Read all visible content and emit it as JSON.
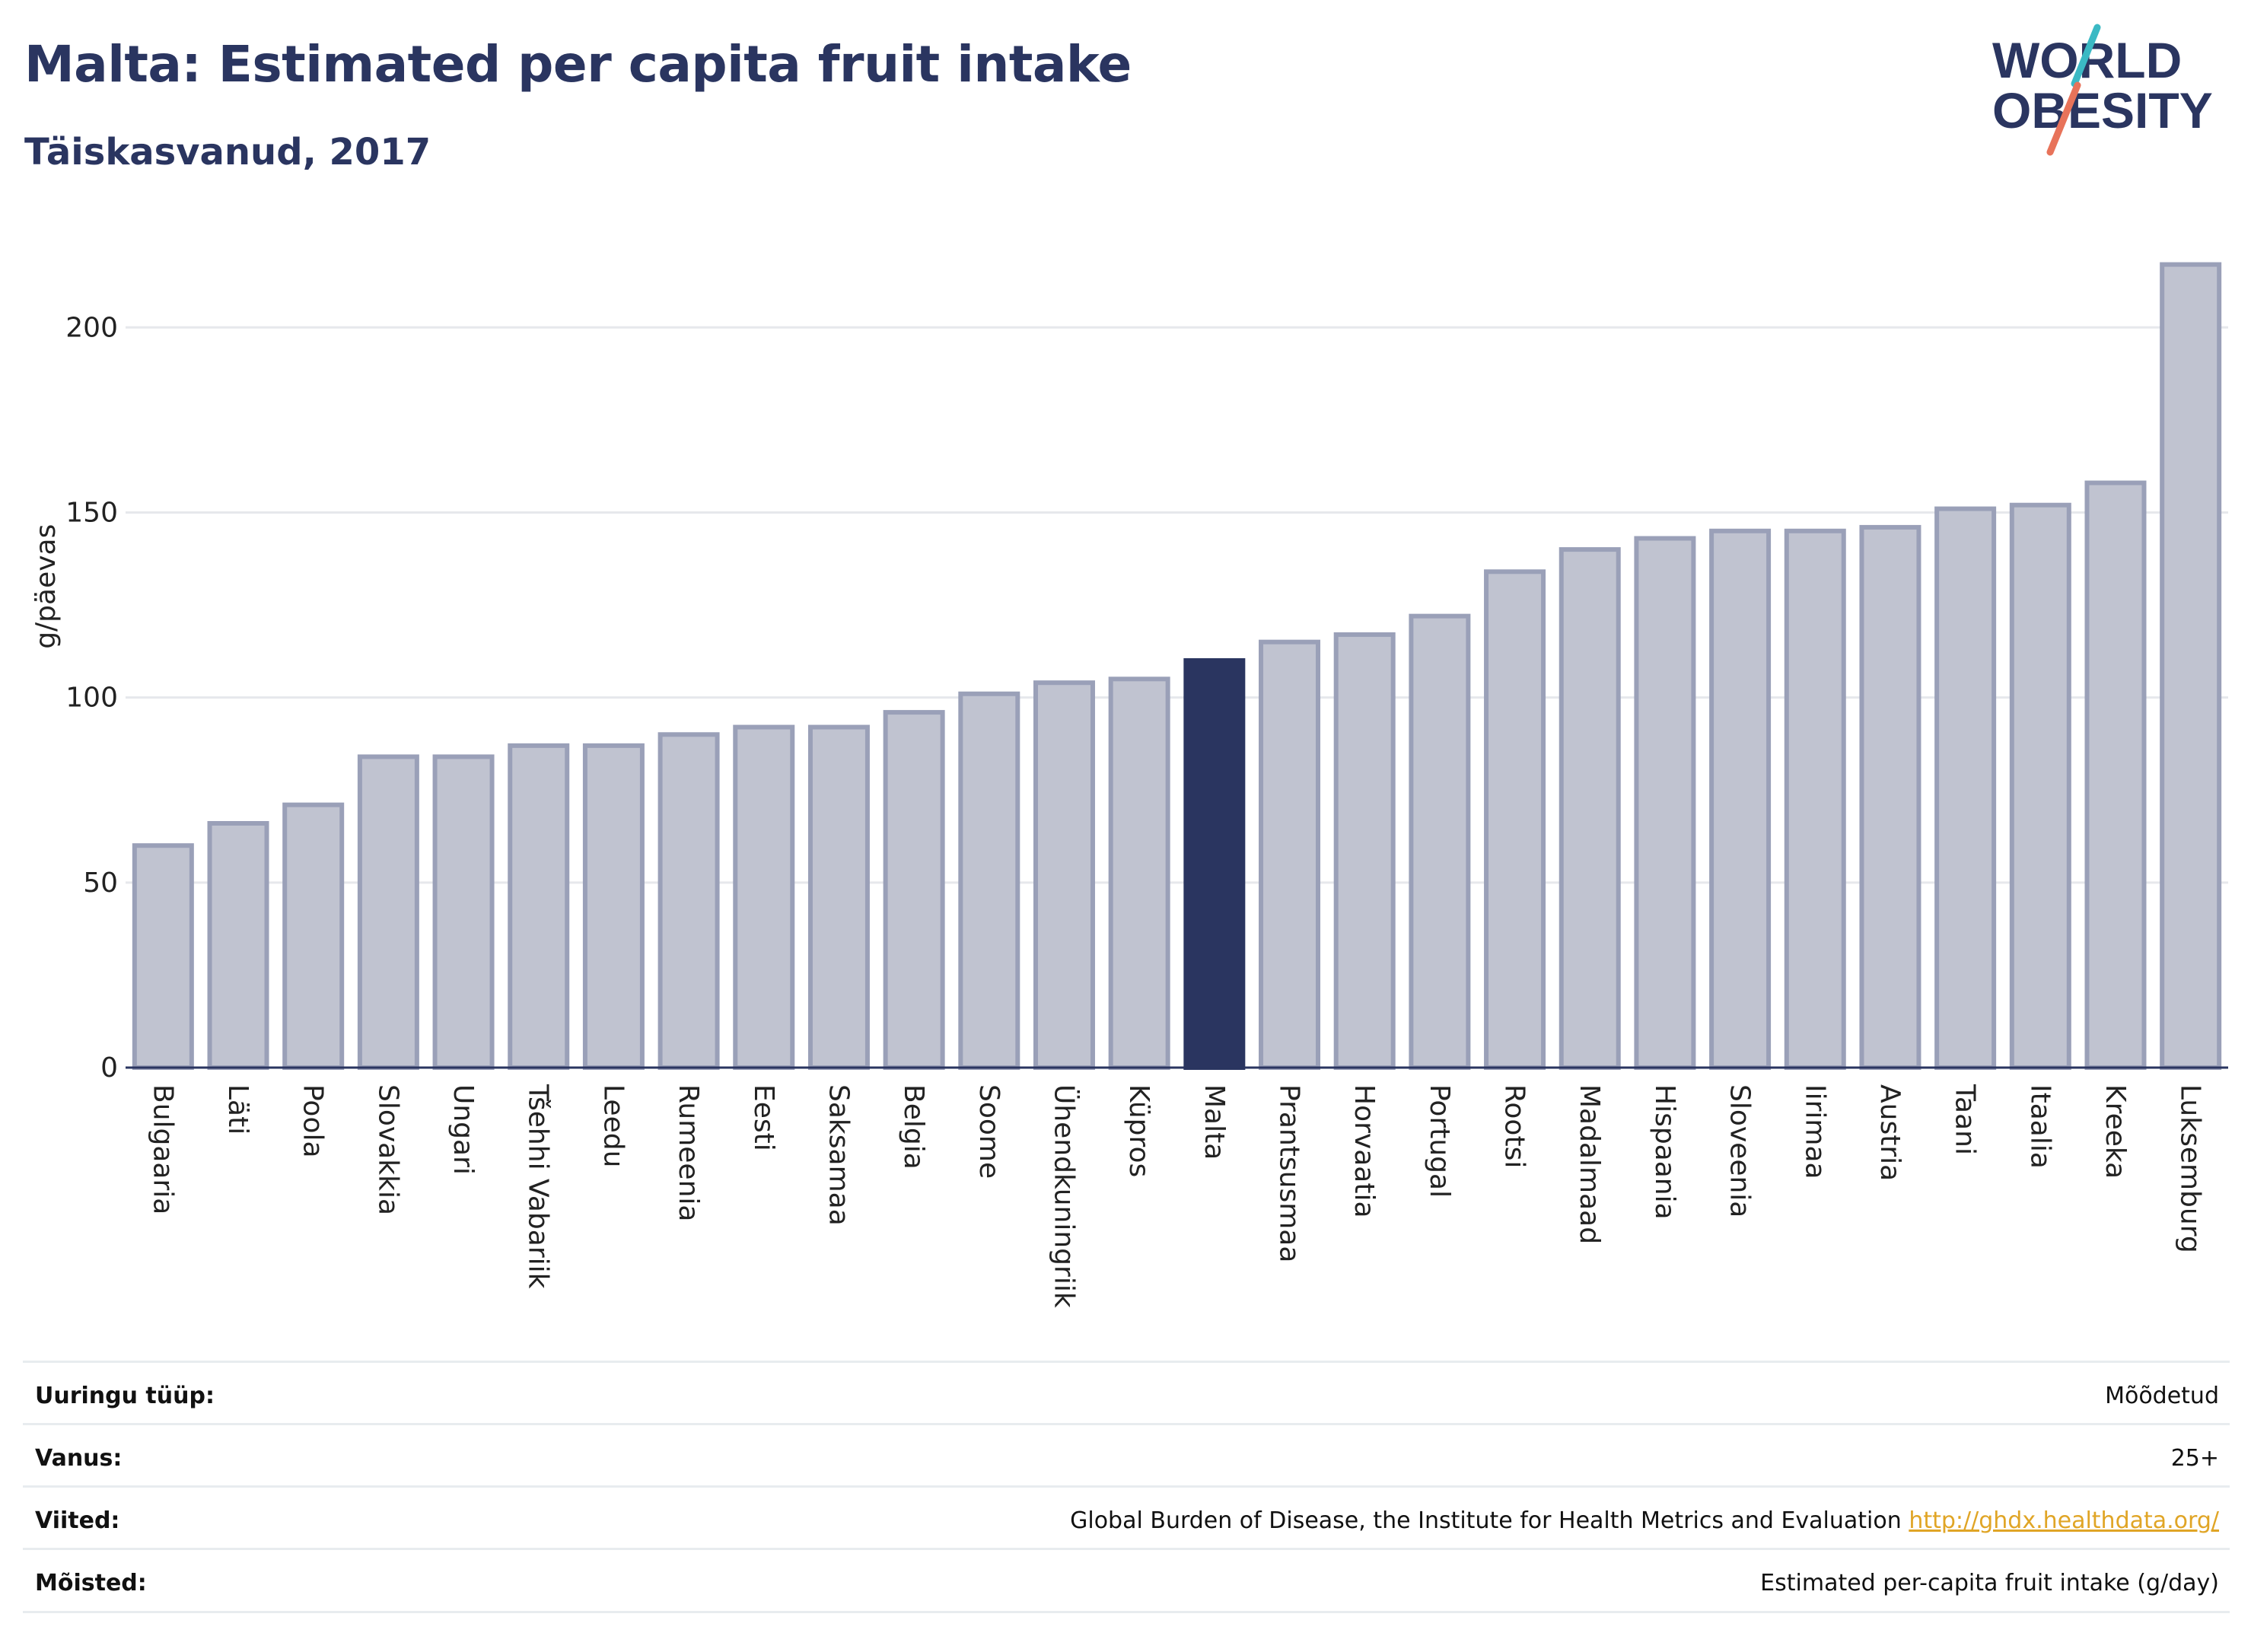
{
  "title": "Malta: Estimated per capita fruit intake",
  "subtitle": "Täiskasvanud, 2017",
  "logo": {
    "line1": "WORLD",
    "line2": "OBESITY",
    "colors": {
      "text": "#2a3560",
      "slash_top": "#3bb9c4",
      "slash_bottom": "#e8735a"
    }
  },
  "colors": {
    "bar": "#c0c3d0",
    "bar_border": "#9aa0b8",
    "highlight": "#2a3560",
    "grid": "#e6e8ec",
    "axis": "#2a3560",
    "link": "#e0a526"
  },
  "chart_data": {
    "type": "bar",
    "ylabel": "g/päevas",
    "ylim": [
      0,
      220
    ],
    "yticks": [
      0,
      50,
      100,
      150,
      200
    ],
    "grid": true,
    "highlight": "Malta",
    "categories": [
      "Bulgaaria",
      "Läti",
      "Poola",
      "Slovakkia",
      "Ungari",
      "Tšehhi Vabariik",
      "Leedu",
      "Rumeenia",
      "Eesti",
      "Saksamaa",
      "Belgia",
      "Soome",
      "Ühendkuningriik",
      "Küpros",
      "Malta",
      "Prantsusmaa",
      "Horvaatia",
      "Portugal",
      "Rootsi",
      "Madalmaad",
      "Hispaania",
      "Sloveenia",
      "Iirimaa",
      "Austria",
      "Taani",
      "Itaalia",
      "Kreeka",
      "Luksemburg"
    ],
    "values": [
      60,
      66,
      71,
      84,
      84,
      87,
      87,
      90,
      92,
      92,
      96,
      101,
      104,
      105,
      110,
      115,
      117,
      122,
      134,
      140,
      143,
      145,
      145,
      146,
      151,
      152,
      158,
      217
    ]
  },
  "info": [
    {
      "label": "Uuringu tüüp:",
      "value": "Mõõdetud"
    },
    {
      "label": "Vanus:",
      "value": "25+"
    },
    {
      "label": "Viited:",
      "value": "Global Burden of Disease, the Institute for Health Metrics and Evaluation",
      "link": "http://ghdx.healthdata.org/"
    },
    {
      "label": "Mõisted:",
      "value": "Estimated per-capita fruit intake (g/day)"
    }
  ]
}
